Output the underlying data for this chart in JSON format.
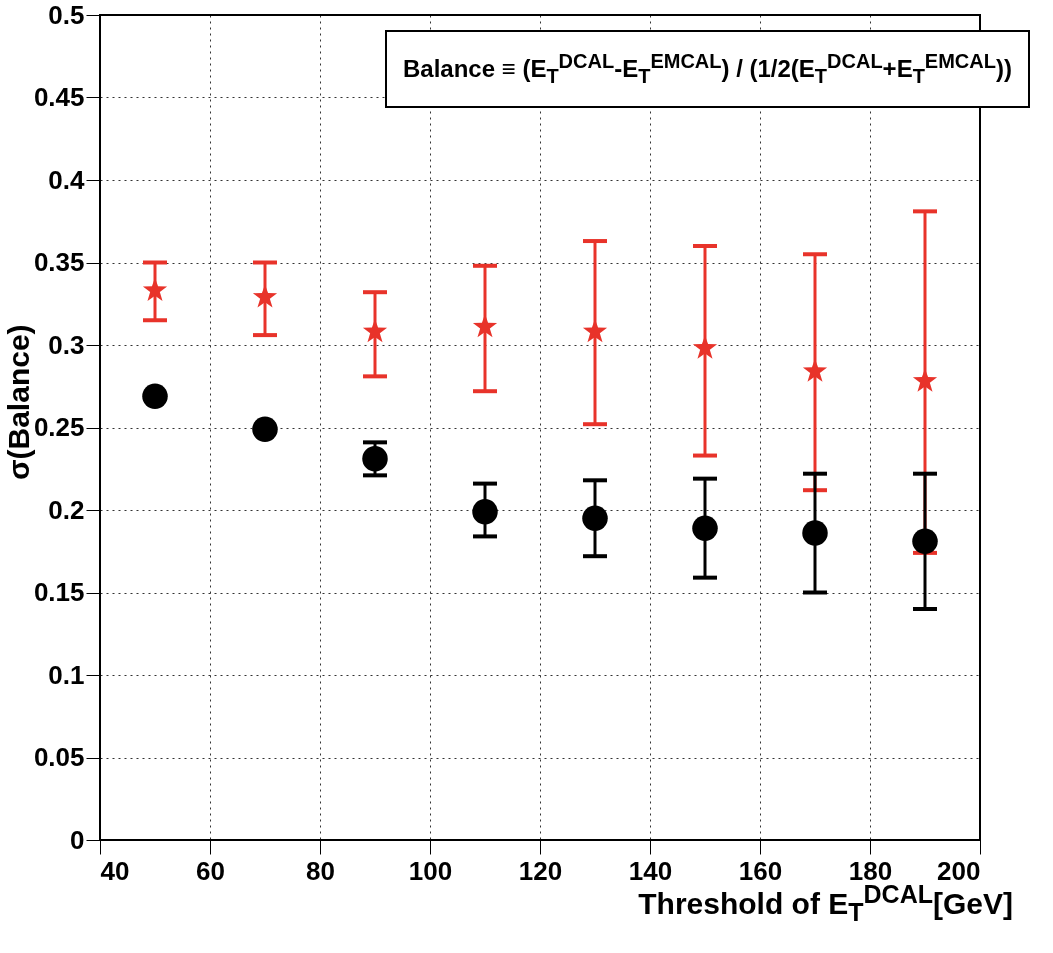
{
  "chart_data": {
    "type": "scatter",
    "xlabel": "Threshold of E$_{T}$$^{DCAL}$[GeV]",
    "ylabel": "σ(Balance)",
    "x": [
      50,
      70,
      90,
      110,
      130,
      150,
      170,
      190
    ],
    "xlim": [
      40,
      200
    ],
    "xticks": [
      40,
      60,
      80,
      100,
      120,
      140,
      160,
      180,
      200
    ],
    "ylim": [
      0,
      0.5
    ],
    "yticks": [
      0,
      0.05,
      0.1,
      0.15,
      0.2,
      0.25,
      0.3,
      0.35,
      0.4,
      0.45,
      0.5
    ],
    "grid": true,
    "series": [
      {
        "color": "#e8332a",
        "marker": "star",
        "values": [
          0.333,
          0.329,
          0.308,
          0.311,
          0.308,
          0.298,
          0.284,
          0.278
        ],
        "errors": [
          [
            0.315,
            0.35
          ],
          [
            0.306,
            0.35
          ],
          [
            0.281,
            0.332
          ],
          [
            0.272,
            0.348
          ],
          [
            0.252,
            0.363
          ],
          [
            0.233,
            0.36
          ],
          [
            0.212,
            0.355
          ],
          [
            0.174,
            0.381
          ]
        ]
      },
      {
        "color": "#000000",
        "marker": "circle",
        "values": [
          0.269,
          0.249,
          0.231,
          0.199,
          0.195,
          0.189,
          0.186,
          0.181
        ],
        "errors": [
          null,
          null,
          [
            0.221,
            0.241
          ],
          [
            0.184,
            0.216
          ],
          [
            0.172,
            0.218
          ],
          [
            0.159,
            0.219
          ],
          [
            0.15,
            0.222
          ],
          [
            0.14,
            0.222
          ]
        ]
      }
    ],
    "annotations": [
      "Balance ≡ (E$_{T}$$^{DCAL}$-E$_{T}$$^{EMCAL}$) / (1/2(E$_{T}$$^{DCAL}$+E$_{T}$$^{EMCAL}$))"
    ]
  }
}
